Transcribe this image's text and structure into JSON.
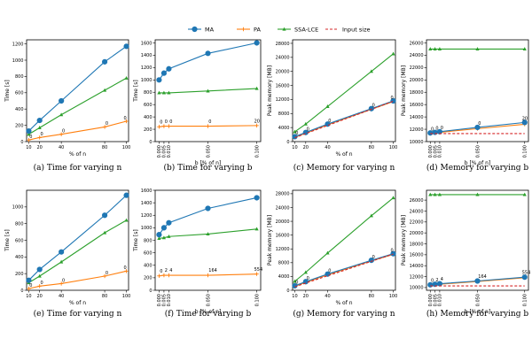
{
  "legend": {
    "items": [
      {
        "label": "MA",
        "color": "#1f77b4",
        "marker": "circle"
      },
      {
        "label": "PA",
        "color": "#ff7f0e",
        "marker": "plus"
      },
      {
        "label": "SSA-LCE",
        "color": "#2ca02c",
        "marker": "triangle"
      },
      {
        "label": "Input size",
        "color": "#d62728",
        "marker": "dashed"
      }
    ]
  },
  "chart_data": [
    {
      "id": "a",
      "type": "line",
      "caption": "(a) Time for varying n",
      "xlabel": "% of n",
      "ylabel": "Time [s]",
      "xscale": "linear",
      "xlim": [
        8,
        102
      ],
      "ylim": [
        0,
        1250
      ],
      "xticks": [
        10,
        20,
        40,
        80,
        100
      ],
      "xtick_labels": [
        "10",
        "20",
        "40",
        "80",
        "100"
      ],
      "yticks": [
        0,
        200,
        400,
        600,
        800,
        1000,
        1200
      ],
      "x": [
        10,
        20,
        40,
        80,
        100
      ],
      "series": [
        {
          "name": "MA",
          "values": [
            130,
            260,
            500,
            980,
            1170
          ]
        },
        {
          "name": "SSA-LCE",
          "values": [
            90,
            170,
            330,
            630,
            780
          ]
        },
        {
          "name": "PA",
          "values": [
            20,
            50,
            90,
            180,
            250
          ]
        }
      ],
      "annotations": [
        {
          "x": 10,
          "y": 20,
          "text": "0"
        },
        {
          "x": 20,
          "y": 50,
          "text": "0"
        },
        {
          "x": 40,
          "y": 90,
          "text": "0"
        },
        {
          "x": 80,
          "y": 180,
          "text": "0"
        },
        {
          "x": 100,
          "y": 250,
          "text": "0"
        }
      ]
    },
    {
      "id": "b",
      "type": "line",
      "caption": "(b) Time for varying b",
      "xlabel": "b [% of n]",
      "ylabel": "Time [s]",
      "xscale": "linear",
      "xlim": [
        -0.004,
        0.104
      ],
      "ylim": [
        0,
        1650
      ],
      "xtick_rotate": true,
      "xticks": [
        0,
        0.005,
        0.01,
        0.05,
        0.1
      ],
      "xtick_labels": [
        "0.000",
        "0.005",
        "0.010",
        "0.050",
        "0.100"
      ],
      "yticks": [
        0,
        200,
        400,
        600,
        800,
        1000,
        1200,
        1400,
        1600
      ],
      "x": [
        0,
        0.005,
        0.01,
        0.05,
        0.1
      ],
      "series": [
        {
          "name": "MA",
          "values": [
            1000,
            1110,
            1180,
            1430,
            1600
          ]
        },
        {
          "name": "SSA-LCE",
          "values": [
            790,
            790,
            790,
            820,
            860
          ]
        },
        {
          "name": "PA",
          "values": [
            240,
            250,
            250,
            250,
            260
          ]
        }
      ],
      "annotations": [
        {
          "x": 0,
          "y": 260,
          "text": "0"
        },
        {
          "x": 0.005,
          "y": 270,
          "text": "0"
        },
        {
          "x": 0.01,
          "y": 270,
          "text": "0"
        },
        {
          "x": 0.05,
          "y": 270,
          "text": "0"
        },
        {
          "x": 0.1,
          "y": 280,
          "text": "20"
        }
      ]
    },
    {
      "id": "c",
      "type": "line",
      "caption": "(c) Memory for varying n",
      "xlabel": "% of n",
      "ylabel": "Peak memory [MB]",
      "xscale": "linear",
      "xlim": [
        8,
        102
      ],
      "ylim": [
        0,
        29000
      ],
      "xticks": [
        10,
        20,
        40,
        80,
        100
      ],
      "xtick_labels": [
        "10",
        "20",
        "40",
        "80",
        "100"
      ],
      "yticks": [
        0,
        4000,
        8000,
        12000,
        16000,
        20000,
        24000,
        28000
      ],
      "x": [
        10,
        20,
        40,
        80,
        100
      ],
      "series": [
        {
          "name": "SSA-LCE",
          "values": [
            2800,
            5000,
            10000,
            20000,
            25000
          ]
        },
        {
          "name": "Input size",
          "values": [
            1100,
            2300,
            4600,
            9200,
            11500
          ]
        },
        {
          "name": "MA",
          "values": [
            1400,
            2600,
            5000,
            9400,
            11600
          ]
        },
        {
          "name": "PA",
          "values": [
            1200,
            2400,
            4800,
            9200,
            11400
          ]
        }
      ],
      "annotations": [
        {
          "x": 10,
          "y": 1400,
          "text": "0"
        },
        {
          "x": 20,
          "y": 2600,
          "text": "0"
        },
        {
          "x": 40,
          "y": 5000,
          "text": "0"
        },
        {
          "x": 80,
          "y": 9400,
          "text": "0"
        },
        {
          "x": 100,
          "y": 11600,
          "text": "0"
        }
      ]
    },
    {
      "id": "d",
      "type": "line",
      "caption": "(d) Memory for varying b",
      "xlabel": "b [% of n]",
      "ylabel": "Peak memory [MB]",
      "xscale": "linear",
      "xlim": [
        -0.004,
        0.104
      ],
      "ylim": [
        10000,
        26500
      ],
      "xtick_rotate": true,
      "xticks": [
        0,
        0.005,
        0.01,
        0.05,
        0.1
      ],
      "xtick_labels": [
        "0.000",
        "0.005",
        "0.010",
        "0.050",
        "0.100"
      ],
      "yticks": [
        10000,
        12000,
        14000,
        16000,
        18000,
        20000,
        22000,
        24000,
        26000
      ],
      "x": [
        0,
        0.005,
        0.01,
        0.05,
        0.1
      ],
      "series": [
        {
          "name": "SSA-LCE",
          "values": [
            25000,
            25000,
            25000,
            25000,
            25000
          ]
        },
        {
          "name": "Input size",
          "values": [
            11300,
            11300,
            11300,
            11300,
            11300
          ]
        },
        {
          "name": "MA",
          "values": [
            11400,
            11500,
            11600,
            12300,
            13100
          ]
        },
        {
          "name": "PA",
          "values": [
            11400,
            11450,
            11500,
            12100,
            12800
          ]
        }
      ],
      "annotations": [
        {
          "x": 0,
          "y": 11500,
          "text": "0"
        },
        {
          "x": 0.005,
          "y": 11600,
          "text": "0"
        },
        {
          "x": 0.01,
          "y": 11700,
          "text": "0"
        },
        {
          "x": 0.05,
          "y": 12400,
          "text": "0"
        },
        {
          "x": 0.1,
          "y": 13200,
          "text": "20"
        }
      ]
    },
    {
      "id": "e",
      "type": "line",
      "caption": "(e) Time for varying n",
      "xlabel": "% of n",
      "ylabel": "Time [s]",
      "xscale": "linear",
      "xlim": [
        8,
        102
      ],
      "ylim": [
        0,
        1200
      ],
      "xticks": [
        10,
        20,
        40,
        80,
        100
      ],
      "xtick_labels": [
        "10",
        "20",
        "40",
        "80",
        "100"
      ],
      "yticks": [
        0,
        200,
        400,
        600,
        800,
        1000
      ],
      "x": [
        10,
        20,
        40,
        80,
        100
      ],
      "series": [
        {
          "name": "MA",
          "values": [
            120,
            250,
            460,
            900,
            1140
          ]
        },
        {
          "name": "SSA-LCE",
          "values": [
            90,
            170,
            340,
            690,
            840
          ]
        },
        {
          "name": "PA",
          "values": [
            20,
            50,
            80,
            170,
            230
          ]
        }
      ],
      "annotations": [
        {
          "x": 10,
          "y": 20,
          "text": "0"
        },
        {
          "x": 20,
          "y": 50,
          "text": "0"
        },
        {
          "x": 40,
          "y": 80,
          "text": "0"
        },
        {
          "x": 80,
          "y": 170,
          "text": "0"
        },
        {
          "x": 100,
          "y": 230,
          "text": "0"
        }
      ]
    },
    {
      "id": "f",
      "type": "line",
      "caption": "(f) Time for varying b",
      "xlabel": "b [% of n]",
      "ylabel": "Time [s]",
      "xscale": "linear",
      "xlim": [
        -0.004,
        0.104
      ],
      "ylim": [
        0,
        1600
      ],
      "xtick_rotate": true,
      "xticks": [
        0,
        0.005,
        0.01,
        0.05,
        0.1
      ],
      "xtick_labels": [
        "0.000",
        "0.005",
        "0.010",
        "0.050",
        "0.100"
      ],
      "yticks": [
        0,
        200,
        400,
        600,
        800,
        1000,
        1200,
        1400,
        1600
      ],
      "x": [
        0,
        0.005,
        0.01,
        0.05,
        0.1
      ],
      "series": [
        {
          "name": "MA",
          "values": [
            890,
            1000,
            1080,
            1310,
            1480
          ]
        },
        {
          "name": "SSA-LCE",
          "values": [
            830,
            840,
            860,
            900,
            980
          ]
        },
        {
          "name": "PA",
          "values": [
            230,
            240,
            240,
            240,
            260
          ]
        }
      ],
      "annotations": [
        {
          "x": 0,
          "y": 250,
          "text": "0"
        },
        {
          "x": 0.005,
          "y": 265,
          "text": "2"
        },
        {
          "x": 0.01,
          "y": 265,
          "text": "4"
        },
        {
          "x": 0.05,
          "y": 265,
          "text": "164"
        },
        {
          "x": 0.1,
          "y": 280,
          "text": "554"
        }
      ]
    },
    {
      "id": "g",
      "type": "line",
      "caption": "(g) Memory for varying n",
      "xlabel": "% of n",
      "ylabel": "Peak memory [MB]",
      "xscale": "linear",
      "xlim": [
        8,
        102
      ],
      "ylim": [
        0,
        29000
      ],
      "xticks": [
        10,
        20,
        40,
        80,
        100
      ],
      "xtick_labels": [
        "10",
        "20",
        "40",
        "80",
        "100"
      ],
      "yticks": [
        0,
        4000,
        8000,
        12000,
        16000,
        20000,
        24000,
        28000
      ],
      "x": [
        10,
        20,
        40,
        80,
        100
      ],
      "series": [
        {
          "name": "SSA-LCE",
          "values": [
            2600,
            5200,
            10800,
            21600,
            26800
          ]
        },
        {
          "name": "Input size",
          "values": [
            1000,
            2100,
            4200,
            8400,
            10500
          ]
        },
        {
          "name": "MA",
          "values": [
            1300,
            2500,
            4700,
            8700,
            10600
          ]
        },
        {
          "name": "PA",
          "values": [
            1100,
            2300,
            4500,
            8500,
            10400
          ]
        }
      ],
      "annotations": [
        {
          "x": 10,
          "y": 1300,
          "text": "0"
        },
        {
          "x": 20,
          "y": 2500,
          "text": "0"
        },
        {
          "x": 40,
          "y": 4700,
          "text": "0"
        },
        {
          "x": 80,
          "y": 8700,
          "text": "0"
        },
        {
          "x": 100,
          "y": 10600,
          "text": "0"
        }
      ]
    },
    {
      "id": "h",
      "type": "line",
      "caption": "(h) Memory for varying b",
      "xlabel": "b [% of n]",
      "ylabel": "Peak memory [MB]",
      "xscale": "linear",
      "xlim": [
        -0.004,
        0.104
      ],
      "ylim": [
        9500,
        27800
      ],
      "xtick_rotate": true,
      "xticks": [
        0,
        0.005,
        0.01,
        0.05,
        0.1
      ],
      "xtick_labels": [
        "0.000",
        "0.005",
        "0.010",
        "0.050",
        "0.100"
      ],
      "yticks": [
        10000,
        12000,
        14000,
        16000,
        18000,
        20000,
        22000,
        24000,
        26000
      ],
      "x": [
        0,
        0.005,
        0.01,
        0.05,
        0.1
      ],
      "series": [
        {
          "name": "SSA-LCE",
          "values": [
            27000,
            27000,
            27000,
            27000,
            27000
          ]
        },
        {
          "name": "Input size",
          "values": [
            10300,
            10300,
            10300,
            10300,
            10300
          ]
        },
        {
          "name": "MA",
          "values": [
            10500,
            10600,
            10700,
            11200,
            11900
          ]
        },
        {
          "name": "PA",
          "values": [
            10400,
            10500,
            10600,
            11100,
            11800
          ]
        }
      ],
      "annotations": [
        {
          "x": 0,
          "y": 10700,
          "text": "0"
        },
        {
          "x": 0.005,
          "y": 10800,
          "text": "2"
        },
        {
          "x": 0.01,
          "y": 10900,
          "text": "4"
        },
        {
          "x": 0.05,
          "y": 11400,
          "text": "164"
        },
        {
          "x": 0.1,
          "y": 12100,
          "text": "554"
        }
      ]
    }
  ]
}
